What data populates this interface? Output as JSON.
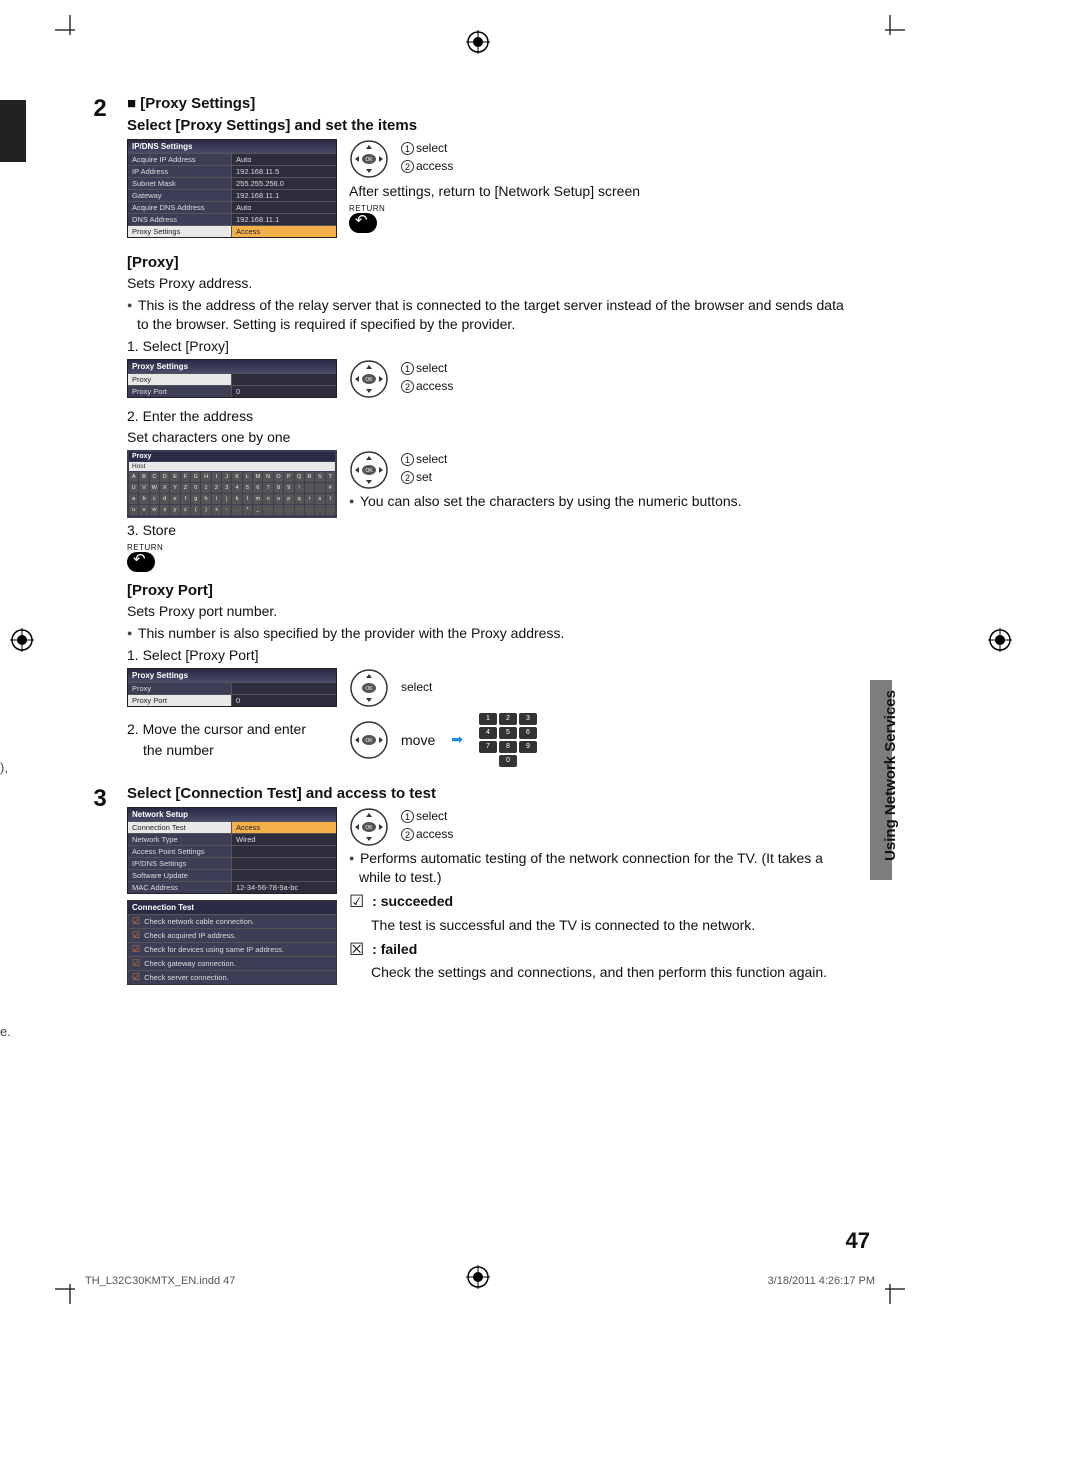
{
  "page_number": "47",
  "side_label": "Using Network Services",
  "footer_left": "TH_L32C30KMTX_EN.indd   47",
  "footer_right": "3/18/2011   4:26:17 PM",
  "left_fragment_1": "),",
  "left_fragment_2": "e.",
  "step2": {
    "num": "2",
    "title_prefix": "■ ",
    "title": "[Proxy Settings]",
    "subtitle": "Select [Proxy Settings] and set the items",
    "menu": {
      "header": "IP/DNS Settings",
      "rows": [
        {
          "k": "Acquire IP Address",
          "v": "Auto"
        },
        {
          "k": "IP Address",
          "v": "192.168.11.5"
        },
        {
          "k": "Subnet Mask",
          "v": "255.255.256.0"
        },
        {
          "k": "Gateway",
          "v": "192.168.11.1"
        },
        {
          "k": "Acquire DNS Address",
          "v": "Auto"
        },
        {
          "k": "DNS Address",
          "v": "192.168.11.1"
        },
        {
          "k": "Proxy Settings",
          "v": "Access"
        }
      ]
    },
    "dpad_labels": {
      "l1": "select",
      "l2": "access"
    },
    "after_text": "After settings, return to [Network Setup] screen",
    "return_label": "RETURN",
    "proxy": {
      "title": "[Proxy]",
      "line1": "Sets Proxy address.",
      "bullet1": "This is the address of the relay server that is connected to the target server instead of the browser and sends data to the browser. Setting is required if specified by the provider.",
      "step1": "1. Select [Proxy]",
      "menu": {
        "header": "Proxy Settings",
        "rows": [
          {
            "k": "Proxy",
            "v": ""
          },
          {
            "k": "Proxy Port",
            "v": "0"
          }
        ]
      },
      "dpad_labels": {
        "l1": "select",
        "l2": "access"
      },
      "step2": "2. Enter the address",
      "step2b": "Set characters one by one",
      "kb_title": "Proxy",
      "kb_host": "Host",
      "kb_rows": {
        "r1": [
          "A",
          "B",
          "C",
          "D",
          "E",
          "F",
          "G",
          "H",
          "I",
          "J",
          "K",
          "L",
          "M",
          "N",
          "O",
          "P",
          "Q",
          "R",
          "S",
          "T"
        ],
        "r2": [
          "U",
          "V",
          "W",
          "X",
          "Y",
          "Z",
          "0",
          "1",
          "2",
          "3",
          "4",
          "5",
          "6",
          "7",
          "8",
          "9",
          "!",
          "",
          "",
          "#"
        ],
        "r3": [
          "a",
          "b",
          "c",
          "d",
          "e",
          "f",
          "g",
          "h",
          "i",
          "j",
          "k",
          "l",
          "m",
          "n",
          "o",
          "p",
          "q",
          "r",
          "s",
          "t"
        ],
        "r4": [
          "u",
          "v",
          "w",
          "x",
          "y",
          "z",
          "(",
          ")",
          "+",
          "-",
          ".",
          "*",
          "_",
          "",
          "",
          "",
          "",
          "",
          "",
          ""
        ]
      },
      "dpad2_labels": {
        "l1": "select",
        "l2": "set"
      },
      "bullet2": "You can also set the characters by using the numeric buttons.",
      "step3": "3. Store",
      "return_label": "RETURN"
    },
    "proxy_port": {
      "title": "[Proxy Port]",
      "line1": "Sets Proxy port number.",
      "bullet1": "This number is also specified by the provider with the Proxy address.",
      "step1": "1. Select [Proxy Port]",
      "menu": {
        "header": "Proxy Settings",
        "rows": [
          {
            "k": "Proxy",
            "v": ""
          },
          {
            "k": "Proxy Port",
            "v": "0"
          }
        ]
      },
      "dpad_label": "select",
      "step2a": "2. Move the cursor and enter",
      "step2b": "the number",
      "move_label": "move",
      "num_keys": [
        "1",
        "2",
        "3",
        "4",
        "5",
        "6",
        "7",
        "8",
        "9",
        "0"
      ]
    }
  },
  "step3": {
    "num": "3",
    "title": "Select [Connection Test] and access to test",
    "menu": {
      "header": "Network Setup",
      "rows": [
        {
          "k": "Connection Test",
          "v": "Access"
        },
        {
          "k": "Network Type",
          "v": "Wired"
        },
        {
          "k": "Access Point Settings",
          "v": ""
        },
        {
          "k": "IP/DNS Settings",
          "v": ""
        },
        {
          "k": "Software Update",
          "v": ""
        },
        {
          "k": "MAC Address",
          "v": "12-34-56-78-9a-bc"
        }
      ]
    },
    "dpad_labels": {
      "l1": "select",
      "l2": "access"
    },
    "bullet1": "Performs automatic testing of the network connection for the TV. (It takes a while to test.)",
    "conn_test": {
      "title": "Connection Test",
      "rows": [
        "Check network cable connection.",
        "Check acquired IP address.",
        "Check for devices using same IP address.",
        "Check gateway connection.",
        "Check server connection."
      ]
    },
    "succeeded_label": " : succeeded",
    "succeeded_text": "The test is successful and the TV is connected to the network.",
    "failed_label": " : failed",
    "failed_text": "Check the settings and connections, and then perform this function again."
  }
}
